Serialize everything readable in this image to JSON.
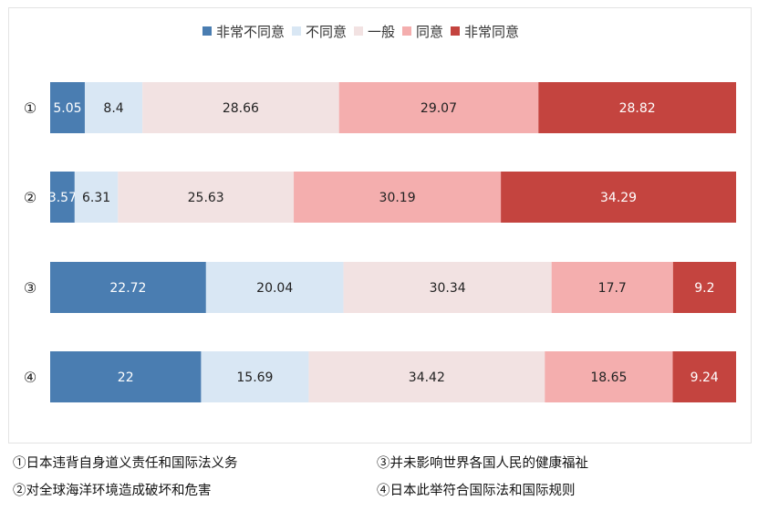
{
  "chart_data": {
    "type": "bar",
    "orientation": "horizontal",
    "stacked": true,
    "normalized": true,
    "categories": [
      "①",
      "②",
      "③",
      "④"
    ],
    "series": [
      {
        "name": "非常不同意",
        "color": "#4a7db1",
        "label_color": "#ffffff",
        "values": [
          5.05,
          3.57,
          22.72,
          22
        ]
      },
      {
        "name": "不同意",
        "color": "#d9e7f4",
        "label_color": "#222222",
        "values": [
          8.4,
          6.31,
          20.04,
          15.69
        ]
      },
      {
        "name": "一般",
        "color": "#f2e2e2",
        "label_color": "#222222",
        "values": [
          28.66,
          25.63,
          30.34,
          34.42
        ]
      },
      {
        "name": "同意",
        "color": "#f4aeae",
        "label_color": "#222222",
        "values": [
          29.07,
          30.19,
          17.7,
          18.65
        ]
      },
      {
        "name": "非常同意",
        "color": "#c4443f",
        "label_color": "#ffffff",
        "values": [
          28.82,
          34.29,
          9.2,
          9.24
        ]
      }
    ],
    "value_labels": [
      [
        "5.05",
        "8.4",
        "28.66",
        "29.07",
        "28.82"
      ],
      [
        "3.57",
        "6.31",
        "25.63",
        "30.19",
        "34.29"
      ],
      [
        "22.72",
        "20.04",
        "30.34",
        "17.7",
        "9.2"
      ],
      [
        "22",
        "15.69",
        "34.42",
        "18.65",
        "9.24"
      ]
    ],
    "legend_position": "top",
    "grid": false
  },
  "notes": [
    "①日本违背自身道义责任和国际法义务",
    "②对全球海洋环境造成破坏和危害",
    "③并未影响世界各国人民的健康福祉",
    "④日本此举符合国际法和国际规则"
  ]
}
